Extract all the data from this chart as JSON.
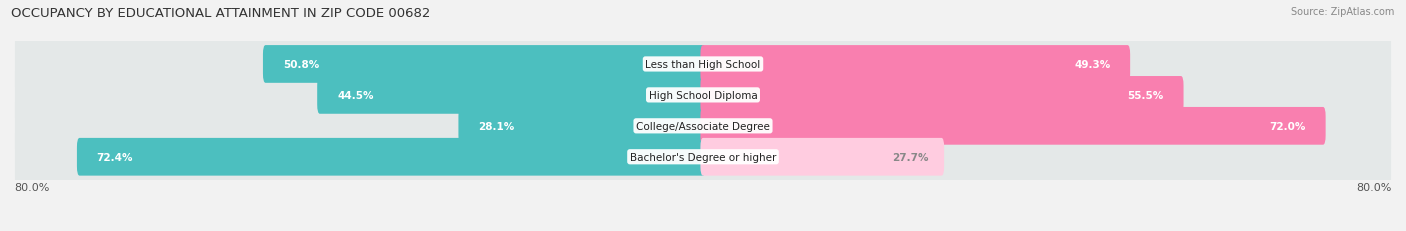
{
  "title": "OCCUPANCY BY EDUCATIONAL ATTAINMENT IN ZIP CODE 00682",
  "source": "Source: ZipAtlas.com",
  "categories": [
    "Less than High School",
    "High School Diploma",
    "College/Associate Degree",
    "Bachelor's Degree or higher"
  ],
  "owner_values": [
    50.8,
    44.5,
    28.1,
    72.4
  ],
  "renter_values": [
    49.3,
    55.5,
    72.0,
    27.7
  ],
  "owner_color": "#4CBFBF",
  "renter_color": "#F97FAF",
  "renter_color_light": "#FFCCE0",
  "xlim_left": -80.0,
  "xlim_right": 80.0,
  "x_left_label": "80.0%",
  "x_right_label": "80.0%",
  "background_color": "#f2f2f2",
  "row_bg_color": "#e4e8e8",
  "title_fontsize": 9.5,
  "source_fontsize": 7,
  "bar_label_fontsize": 7.5,
  "cat_label_fontsize": 7.5,
  "tick_fontsize": 8,
  "legend_fontsize": 8
}
